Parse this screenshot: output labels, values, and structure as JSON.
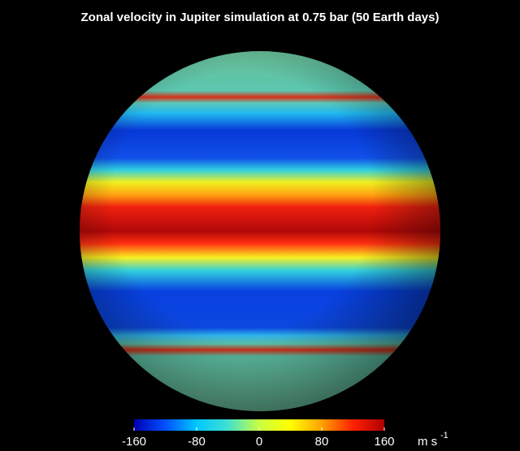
{
  "chart_data": {
    "type": "sphere-map",
    "title": "Zonal velocity in Jupiter simulation at 0.75 bar (50 Earth days)",
    "colorbar": {
      "lim": [
        -160,
        160
      ],
      "ticks": [
        -160,
        -80,
        0,
        80,
        160
      ],
      "colormap": [
        "#0000b4",
        "#0050ff",
        "#00c8ff",
        "#40e0d0",
        "#c8ff40",
        "#ffff00",
        "#ffa000",
        "#ff2000",
        "#b00000"
      ],
      "unit": "m s",
      "unit_exponent": "-1"
    }
  }
}
